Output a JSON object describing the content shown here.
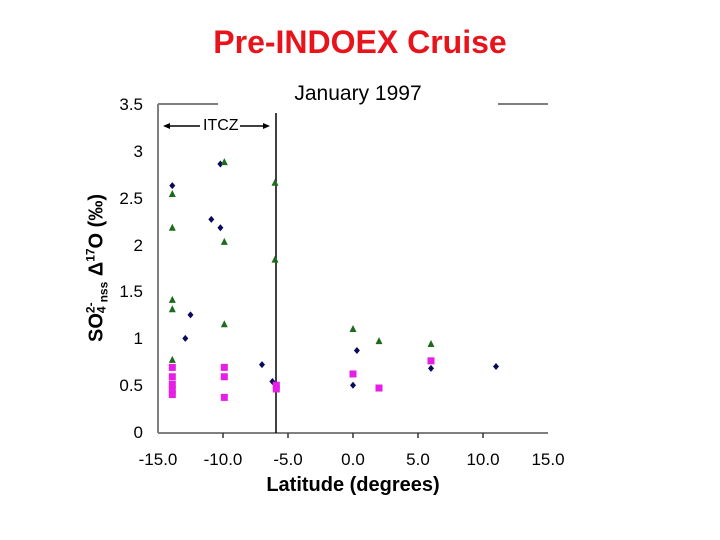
{
  "chart_data": {
    "type": "scatter",
    "title": "Pre-INDOEX Cruise",
    "subtitle": "January 1997",
    "xlabel": "Latitude (degrees)",
    "ylabel": "SO4 2- nss Δ17O (‰)",
    "xlim": [
      -15.0,
      15.0
    ],
    "ylim": [
      0,
      3.5
    ],
    "x_ticks": [
      "-15.0",
      "-10.0",
      "-5.0",
      "0.0",
      "5.0",
      "10.0",
      "15.0"
    ],
    "y_ticks": [
      "0",
      "0.5",
      "1",
      "1.5",
      "2",
      "2.5",
      "3",
      "3.5"
    ],
    "grid": false,
    "legend": null,
    "annotations": [
      {
        "text": "ITCZ",
        "type": "double-arrow",
        "x_range": [
          -15.0,
          -5.9
        ],
        "y": 3.3
      },
      {
        "type": "vertical-line",
        "x": -5.9
      }
    ],
    "series": [
      {
        "name": "diamonds (navy)",
        "marker": "diamond",
        "color": "#0a0a5c",
        "points": [
          [
            -13.9,
            2.64
          ],
          [
            -10.2,
            2.87
          ],
          [
            -10.9,
            2.28
          ],
          [
            -10.2,
            2.19
          ],
          [
            -12.5,
            1.26
          ],
          [
            -12.9,
            1.01
          ],
          [
            -7.0,
            0.73
          ],
          [
            -6.2,
            0.55
          ],
          [
            0.3,
            0.88
          ],
          [
            0.0,
            0.51
          ],
          [
            6.0,
            0.69
          ],
          [
            11.0,
            0.71
          ]
        ]
      },
      {
        "name": "triangles (green)",
        "marker": "triangle",
        "color": "#1e6b1e",
        "points": [
          [
            -13.9,
            2.55
          ],
          [
            -13.9,
            2.19
          ],
          [
            -9.9,
            2.89
          ],
          [
            -9.9,
            2.04
          ],
          [
            -6.0,
            2.67
          ],
          [
            -6.0,
            1.85
          ],
          [
            -13.9,
            1.42
          ],
          [
            -13.9,
            1.32
          ],
          [
            -9.9,
            1.16
          ],
          [
            -13.9,
            0.78
          ],
          [
            0.0,
            1.11
          ],
          [
            2.0,
            0.98
          ],
          [
            6.0,
            0.95
          ]
        ]
      },
      {
        "name": "squares (magenta)",
        "marker": "square",
        "color": "#e61ee6",
        "points": [
          [
            -13.9,
            0.7
          ],
          [
            -13.9,
            0.6
          ],
          [
            -13.9,
            0.52
          ],
          [
            -13.9,
            0.46
          ],
          [
            -13.9,
            0.41
          ],
          [
            -9.9,
            0.7
          ],
          [
            -9.9,
            0.6
          ],
          [
            -9.9,
            0.38
          ],
          [
            -5.9,
            0.51
          ],
          [
            -5.9,
            0.47
          ],
          [
            0.0,
            0.63
          ],
          [
            2.0,
            0.48
          ],
          [
            6.0,
            0.77
          ]
        ]
      }
    ]
  },
  "labels": {
    "ylabel_main": "SO",
    "ylabel_sub4": "4",
    "ylabel_sup": "2-",
    "ylabel_sub_nss": "nss",
    "ylabel_delta": " Δ",
    "ylabel_sup17": "17",
    "ylabel_tail": "O (‰)",
    "itcz": "ITCZ"
  }
}
